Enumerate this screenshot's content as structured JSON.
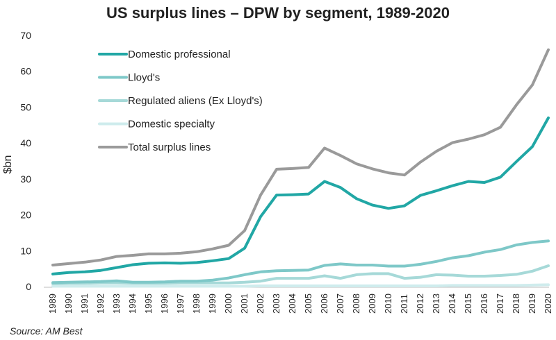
{
  "chart_data": {
    "type": "line",
    "title": "US surplus lines – DPW by segment, 1989-2020",
    "xlabel": "",
    "ylabel": "$bn",
    "ylim": [
      0,
      70
    ],
    "yticks": [
      0,
      10,
      20,
      30,
      40,
      50,
      60,
      70
    ],
    "grid": false,
    "legend_position": "top-left",
    "categories": [
      "1989",
      "1990",
      "1991",
      "1992",
      "1993",
      "1994",
      "1995",
      "1996",
      "1997",
      "1998",
      "1999",
      "2000",
      "2001",
      "2002",
      "2003",
      "2004",
      "2005",
      "2006",
      "2007",
      "2008",
      "2009",
      "2010",
      "2011",
      "2012",
      "2013",
      "2014",
      "2015",
      "2016",
      "2017",
      "2018",
      "2019",
      "2020"
    ],
    "series": [
      {
        "name": "Domestic professional",
        "color": "#21a7a5",
        "values": [
          3.5,
          3.9,
          4.1,
          4.5,
          5.3,
          6.1,
          6.5,
          6.6,
          6.5,
          6.7,
          7.2,
          7.8,
          10.7,
          19.5,
          25.5,
          25.6,
          25.8,
          29.3,
          27.6,
          24.5,
          22.7,
          21.8,
          22.5,
          25.4,
          26.7,
          28.1,
          29.3,
          29.0,
          30.5,
          34.8,
          39.0,
          47.0
        ]
      },
      {
        "name": "Lloyd's",
        "color": "#7ec8c8",
        "values": [
          1.1,
          1.2,
          1.3,
          1.4,
          1.6,
          1.2,
          1.2,
          1.3,
          1.5,
          1.5,
          1.8,
          2.4,
          3.3,
          4.1,
          4.4,
          4.5,
          4.6,
          5.9,
          6.3,
          6.0,
          6.0,
          5.7,
          5.7,
          6.2,
          7.0,
          8.0,
          8.6,
          9.6,
          10.3,
          11.6,
          12.3,
          12.7
        ]
      },
      {
        "name": "Regulated aliens (Ex Lloyd's)",
        "color": "#a6d9d8",
        "values": [
          0.8,
          0.9,
          0.9,
          1.0,
          1.0,
          0.9,
          0.9,
          0.9,
          1.0,
          1.0,
          1.0,
          1.0,
          1.2,
          1.5,
          2.3,
          2.3,
          2.3,
          3.0,
          2.3,
          3.3,
          3.6,
          3.6,
          2.3,
          2.6,
          3.3,
          3.2,
          2.9,
          2.9,
          3.1,
          3.4,
          4.3,
          5.8
        ]
      },
      {
        "name": "Domestic specialty",
        "color": "#cfeced",
        "values": [
          0.1,
          0.1,
          0.1,
          0.1,
          0.1,
          0.1,
          0.1,
          0.1,
          0.1,
          0.1,
          0.1,
          0.1,
          0.1,
          0.2,
          0.2,
          0.2,
          0.2,
          0.2,
          0.2,
          0.2,
          0.2,
          0.2,
          0.2,
          0.2,
          0.2,
          0.3,
          0.3,
          0.3,
          0.3,
          0.3,
          0.4,
          0.5
        ]
      },
      {
        "name": "Total surplus lines",
        "color": "#9a9a9a",
        "values": [
          6.0,
          6.4,
          6.8,
          7.4,
          8.4,
          8.7,
          9.1,
          9.1,
          9.3,
          9.7,
          10.5,
          11.5,
          15.6,
          25.5,
          32.7,
          32.9,
          33.2,
          38.6,
          36.5,
          34.2,
          32.8,
          31.7,
          31.1,
          34.7,
          37.7,
          40.1,
          41.1,
          42.3,
          44.4,
          50.6,
          56.2,
          66.0
        ]
      }
    ],
    "source": "Source: AM Best"
  }
}
